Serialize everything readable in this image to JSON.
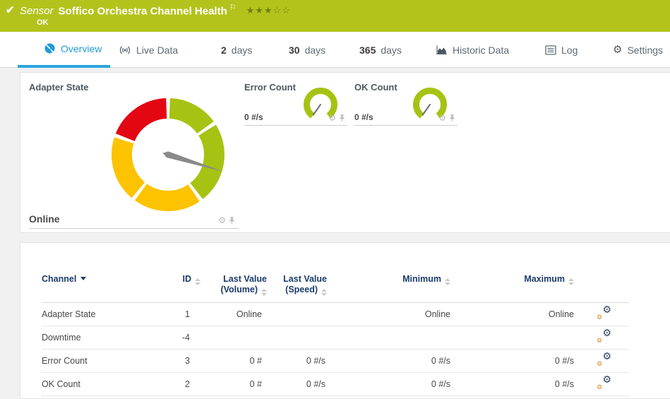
{
  "colors": {
    "header_green": "#b3c31c",
    "tab_active_blue": "#1e9cd8",
    "gauge_green": "#a6c313",
    "gauge_yellow": "#fdc300",
    "gauge_red": "#e30613",
    "needle_gray": "#8a8a8a",
    "table_header_navy": "#1b3a6b",
    "channel_settings_orange": "#d98a21"
  },
  "icons": {
    "gear": "⚙",
    "check": "✔",
    "flag": "⚐"
  },
  "header": {
    "type_label": "Sensor",
    "title": "Soffico Orchestra Channel Health",
    "priority_stars": "★★★☆☆",
    "status_text": "OK"
  },
  "tabs": {
    "overview": {
      "label": "Overview"
    },
    "live_data": {
      "label": "Live Data"
    },
    "days2": {
      "num": "2",
      "label": "days"
    },
    "days30": {
      "num": "30",
      "label": "days"
    },
    "days365": {
      "num": "365",
      "label": "days"
    },
    "historic": {
      "label": "Historic Data"
    },
    "log": {
      "label": "Log"
    },
    "settings": {
      "label": "Settings"
    }
  },
  "gauges": {
    "adapter_state": {
      "title": "Adapter State",
      "value": "Online",
      "needle_angle_deg": 107,
      "segments": [
        {
          "color": "green",
          "from_deg": 2,
          "to_deg": 54
        },
        {
          "color": "green",
          "from_deg": 58,
          "to_deg": 142
        },
        {
          "color": "yellow",
          "from_deg": 146,
          "to_deg": 216
        },
        {
          "color": "yellow",
          "from_deg": 220,
          "to_deg": 288
        },
        {
          "color": "red",
          "from_deg": 292,
          "to_deg": 358
        }
      ]
    },
    "error_count": {
      "title": "Error Count",
      "value": "0 #/s",
      "needle_angle_deg": 215,
      "arc_from_deg": 215,
      "arc_to_deg": 505
    },
    "ok_count": {
      "title": "OK Count",
      "value": "0 #/s",
      "needle_angle_deg": 215,
      "arc_from_deg": 215,
      "arc_to_deg": 505
    }
  },
  "table": {
    "headers": {
      "channel": "Channel",
      "id": "ID",
      "last_value_volume_l1": "Last Value",
      "last_value_volume_l2": "(Volume)",
      "last_value_speed_l1": "Last Value",
      "last_value_speed_l2": "(Speed)",
      "minimum": "Minimum",
      "maximum": "Maximum"
    },
    "rows": [
      {
        "channel": "Adapter State",
        "id": "1",
        "last_value_volume": "Online",
        "last_value_speed": "",
        "minimum": "Online",
        "maximum": "Online"
      },
      {
        "channel": "Downtime",
        "id": "-4",
        "last_value_volume": "",
        "last_value_speed": "",
        "minimum": "",
        "maximum": ""
      },
      {
        "channel": "Error Count",
        "id": "3",
        "last_value_volume": "0 #",
        "last_value_speed": "0 #/s",
        "minimum": "0 #/s",
        "maximum": "0 #/s"
      },
      {
        "channel": "OK Count",
        "id": "2",
        "last_value_volume": "0 #",
        "last_value_speed": "0 #/s",
        "minimum": "0 #/s",
        "maximum": "0 #/s"
      }
    ]
  }
}
